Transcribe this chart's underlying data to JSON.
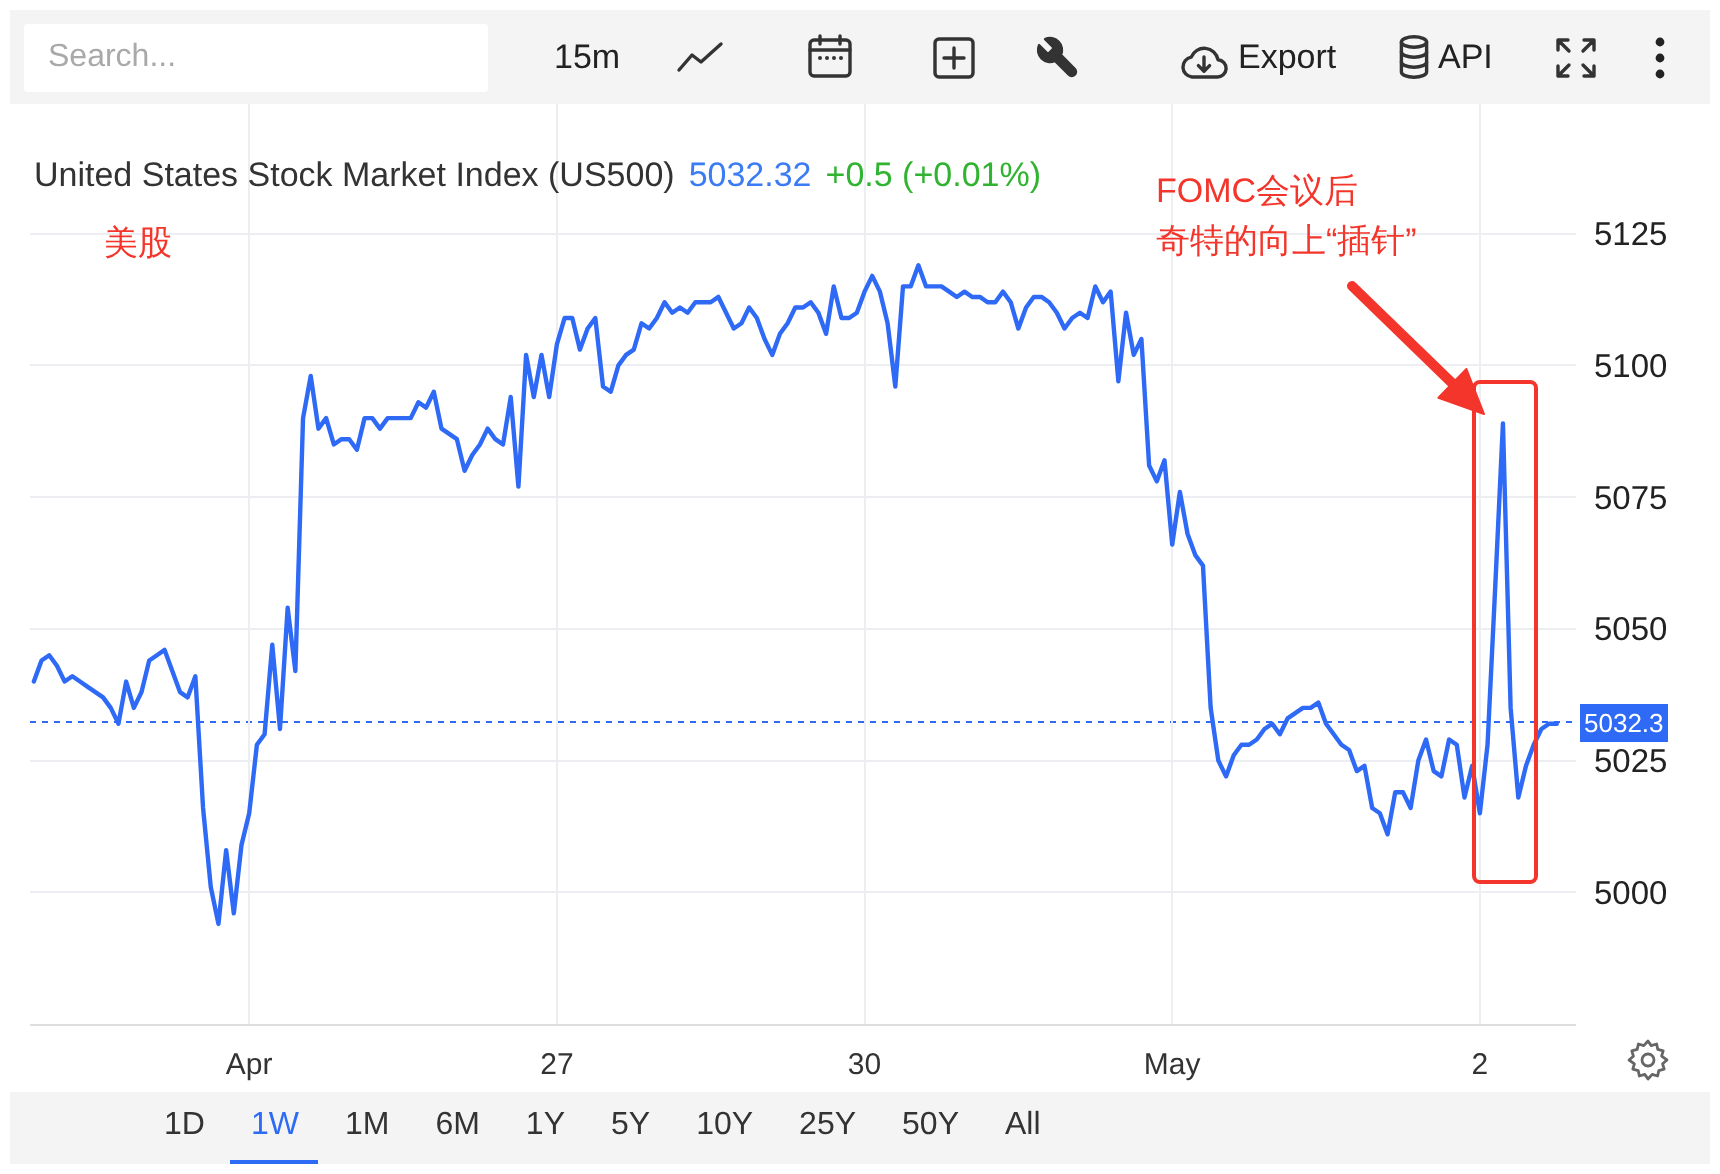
{
  "chart_data": {
    "type": "line",
    "title": "United States Stock Market Index (US500)",
    "annotations": [
      "5032.32",
      "+0.5 (+0.01%)",
      "美股",
      "FOMC会议后",
      "奇特的向上“插针”",
      "Search...",
      "15m",
      "Export",
      "API",
      "1D",
      "1W",
      "1M",
      "6M",
      "1Y",
      "5Y",
      "10Y",
      "25Y",
      "50Y",
      "All"
    ],
    "categories": [
      null,
      null,
      null,
      null,
      null,
      null,
      null,
      null,
      null,
      null,
      null,
      null,
      null,
      null,
      null,
      null,
      null,
      null,
      null,
      null,
      null,
      null,
      null,
      null,
      null,
      null,
      null,
      null,
      "Apr",
      null,
      null,
      null,
      null,
      null,
      null,
      null,
      null,
      null,
      null,
      null,
      null,
      null,
      null,
      null,
      null,
      null,
      null,
      null,
      null,
      null,
      null,
      null,
      null,
      null,
      null,
      null,
      null,
      null,
      null,
      null,
      null,
      null,
      null,
      null,
      null,
      null,
      null,
      null,
      "27",
      null,
      null,
      null,
      null,
      null,
      null,
      null,
      null,
      null,
      null,
      null,
      null,
      null,
      null,
      null,
      null,
      null,
      null,
      null,
      null,
      null,
      null,
      null,
      null,
      null,
      null,
      null,
      null,
      null,
      null,
      null,
      null,
      null,
      null,
      null,
      null,
      null,
      null,
      null,
      "30",
      null,
      null,
      null,
      null,
      null,
      null,
      null,
      null,
      null,
      null,
      null,
      null,
      null,
      null,
      null,
      null,
      null,
      null,
      null,
      null,
      null,
      null,
      null,
      null,
      null,
      null,
      null,
      null,
      null,
      null,
      null,
      null,
      null,
      null,
      null,
      null,
      null,
      null,
      null,
      "May",
      null,
      null,
      null,
      null,
      null,
      null,
      null,
      null,
      null,
      null,
      null,
      null,
      null,
      null,
      null,
      null,
      null,
      null,
      null,
      null,
      null,
      null,
      null,
      null,
      null,
      null,
      null,
      null,
      null,
      null,
      null,
      null,
      null,
      null,
      null,
      null,
      null,
      null,
      null,
      "2",
      null,
      null,
      null,
      null,
      null,
      null,
      null,
      null,
      null,
      null,
      null,
      null
    ],
    "series": [
      {
        "color": "#2e6af6",
        "values": [
          5040,
          5044,
          5045,
          5043,
          5040,
          5041,
          5040,
          5039,
          5038,
          5037,
          5035,
          5032,
          5040,
          5035,
          5038,
          5044,
          5045,
          5046,
          5042,
          5038,
          5037,
          5041,
          5016,
          5001,
          4994,
          5008,
          4996,
          5009,
          5015,
          5028,
          5030,
          5047,
          5031,
          5054,
          5042,
          5090,
          5098,
          5088,
          5090,
          5085,
          5086,
          5086,
          5084,
          5090,
          5090,
          5088,
          5090,
          5090,
          5090,
          5090,
          5093,
          5092,
          5095,
          5088,
          5087,
          5086,
          5080,
          5083,
          5085,
          5088,
          5086,
          5085,
          5094,
          5077,
          5102,
          5094,
          5102,
          5094,
          5104,
          5109,
          5109,
          5103,
          5107,
          5109,
          5096,
          5095,
          5100,
          5102,
          5103,
          5108,
          5107,
          5109,
          5112,
          5110,
          5111,
          5110,
          5112,
          5112,
          5112,
          5113,
          5110,
          5107,
          5108,
          5111,
          5109,
          5105,
          5102,
          5106,
          5108,
          5111,
          5111,
          5112,
          5110,
          5106,
          5115,
          5109,
          5109,
          5110,
          5114,
          5117,
          5114,
          5108,
          5096,
          5115,
          5115,
          5119,
          5115,
          5115,
          5115,
          5114,
          5113,
          5114,
          5113,
          5113,
          5112,
          5112,
          5114,
          5112,
          5107,
          5111,
          5113,
          5113,
          5112,
          5110,
          5107,
          5109,
          5110,
          5109,
          5115,
          5112,
          5114,
          5097,
          5110,
          5102,
          5105,
          5081,
          5078,
          5082,
          5066,
          5076,
          5068,
          5064,
          5062,
          5035,
          5025,
          5022,
          5026,
          5028,
          5028,
          5029,
          5031,
          5032,
          5030,
          5033,
          5034,
          5035,
          5035,
          5036,
          5032,
          5030,
          5028,
          5027,
          5023,
          5024,
          5016,
          5015,
          5011,
          5019,
          5019,
          5016,
          5025,
          5029,
          5023,
          5022,
          5029,
          5028,
          5018,
          5024,
          5015,
          5028,
          5058,
          5089,
          5035,
          5018,
          5024,
          5028,
          5031,
          5032,
          5032,
          null,
          null
        ]
      }
    ],
    "ylim": [
      4975,
      5150
    ],
    "yticks": [
      5000,
      5025,
      5050,
      5075,
      5100,
      5125
    ],
    "grid": true,
    "ref_lines": [
      {
        "axis": "y",
        "value": 5032.3,
        "label": "5032.3",
        "color": "#2e6af6",
        "line_style": "dotted"
      }
    ]
  }
}
